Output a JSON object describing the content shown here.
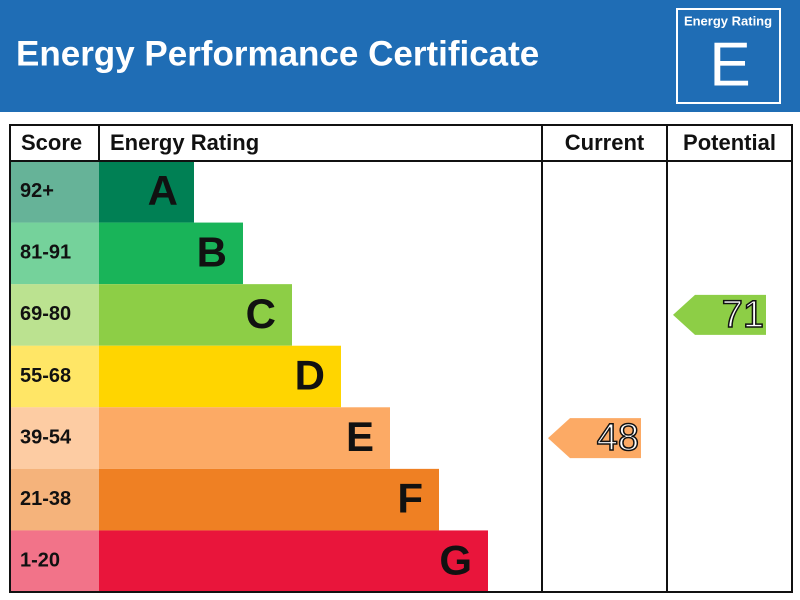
{
  "header": {
    "title": "Energy Performance Certificate",
    "badge_label": "Energy Rating",
    "badge_rating": "E"
  },
  "table": {
    "headers": [
      "Score",
      "Energy Rating",
      "Current",
      "Potential"
    ],
    "bands": [
      {
        "score": "92+",
        "letter": "A",
        "color": "#008054"
      },
      {
        "score": "81-91",
        "letter": "B",
        "color": "#19b459"
      },
      {
        "score": "69-80",
        "letter": "C",
        "color": "#8dce46"
      },
      {
        "score": "55-68",
        "letter": "D",
        "color": "#ffd500"
      },
      {
        "score": "39-54",
        "letter": "E",
        "color": "#fcaa65"
      },
      {
        "score": "21-38",
        "letter": "F",
        "color": "#ef8023"
      },
      {
        "score": "1-20",
        "letter": "G",
        "color": "#e9153b"
      }
    ]
  },
  "current": {
    "value": 48
  },
  "potential": {
    "value": 71
  }
}
